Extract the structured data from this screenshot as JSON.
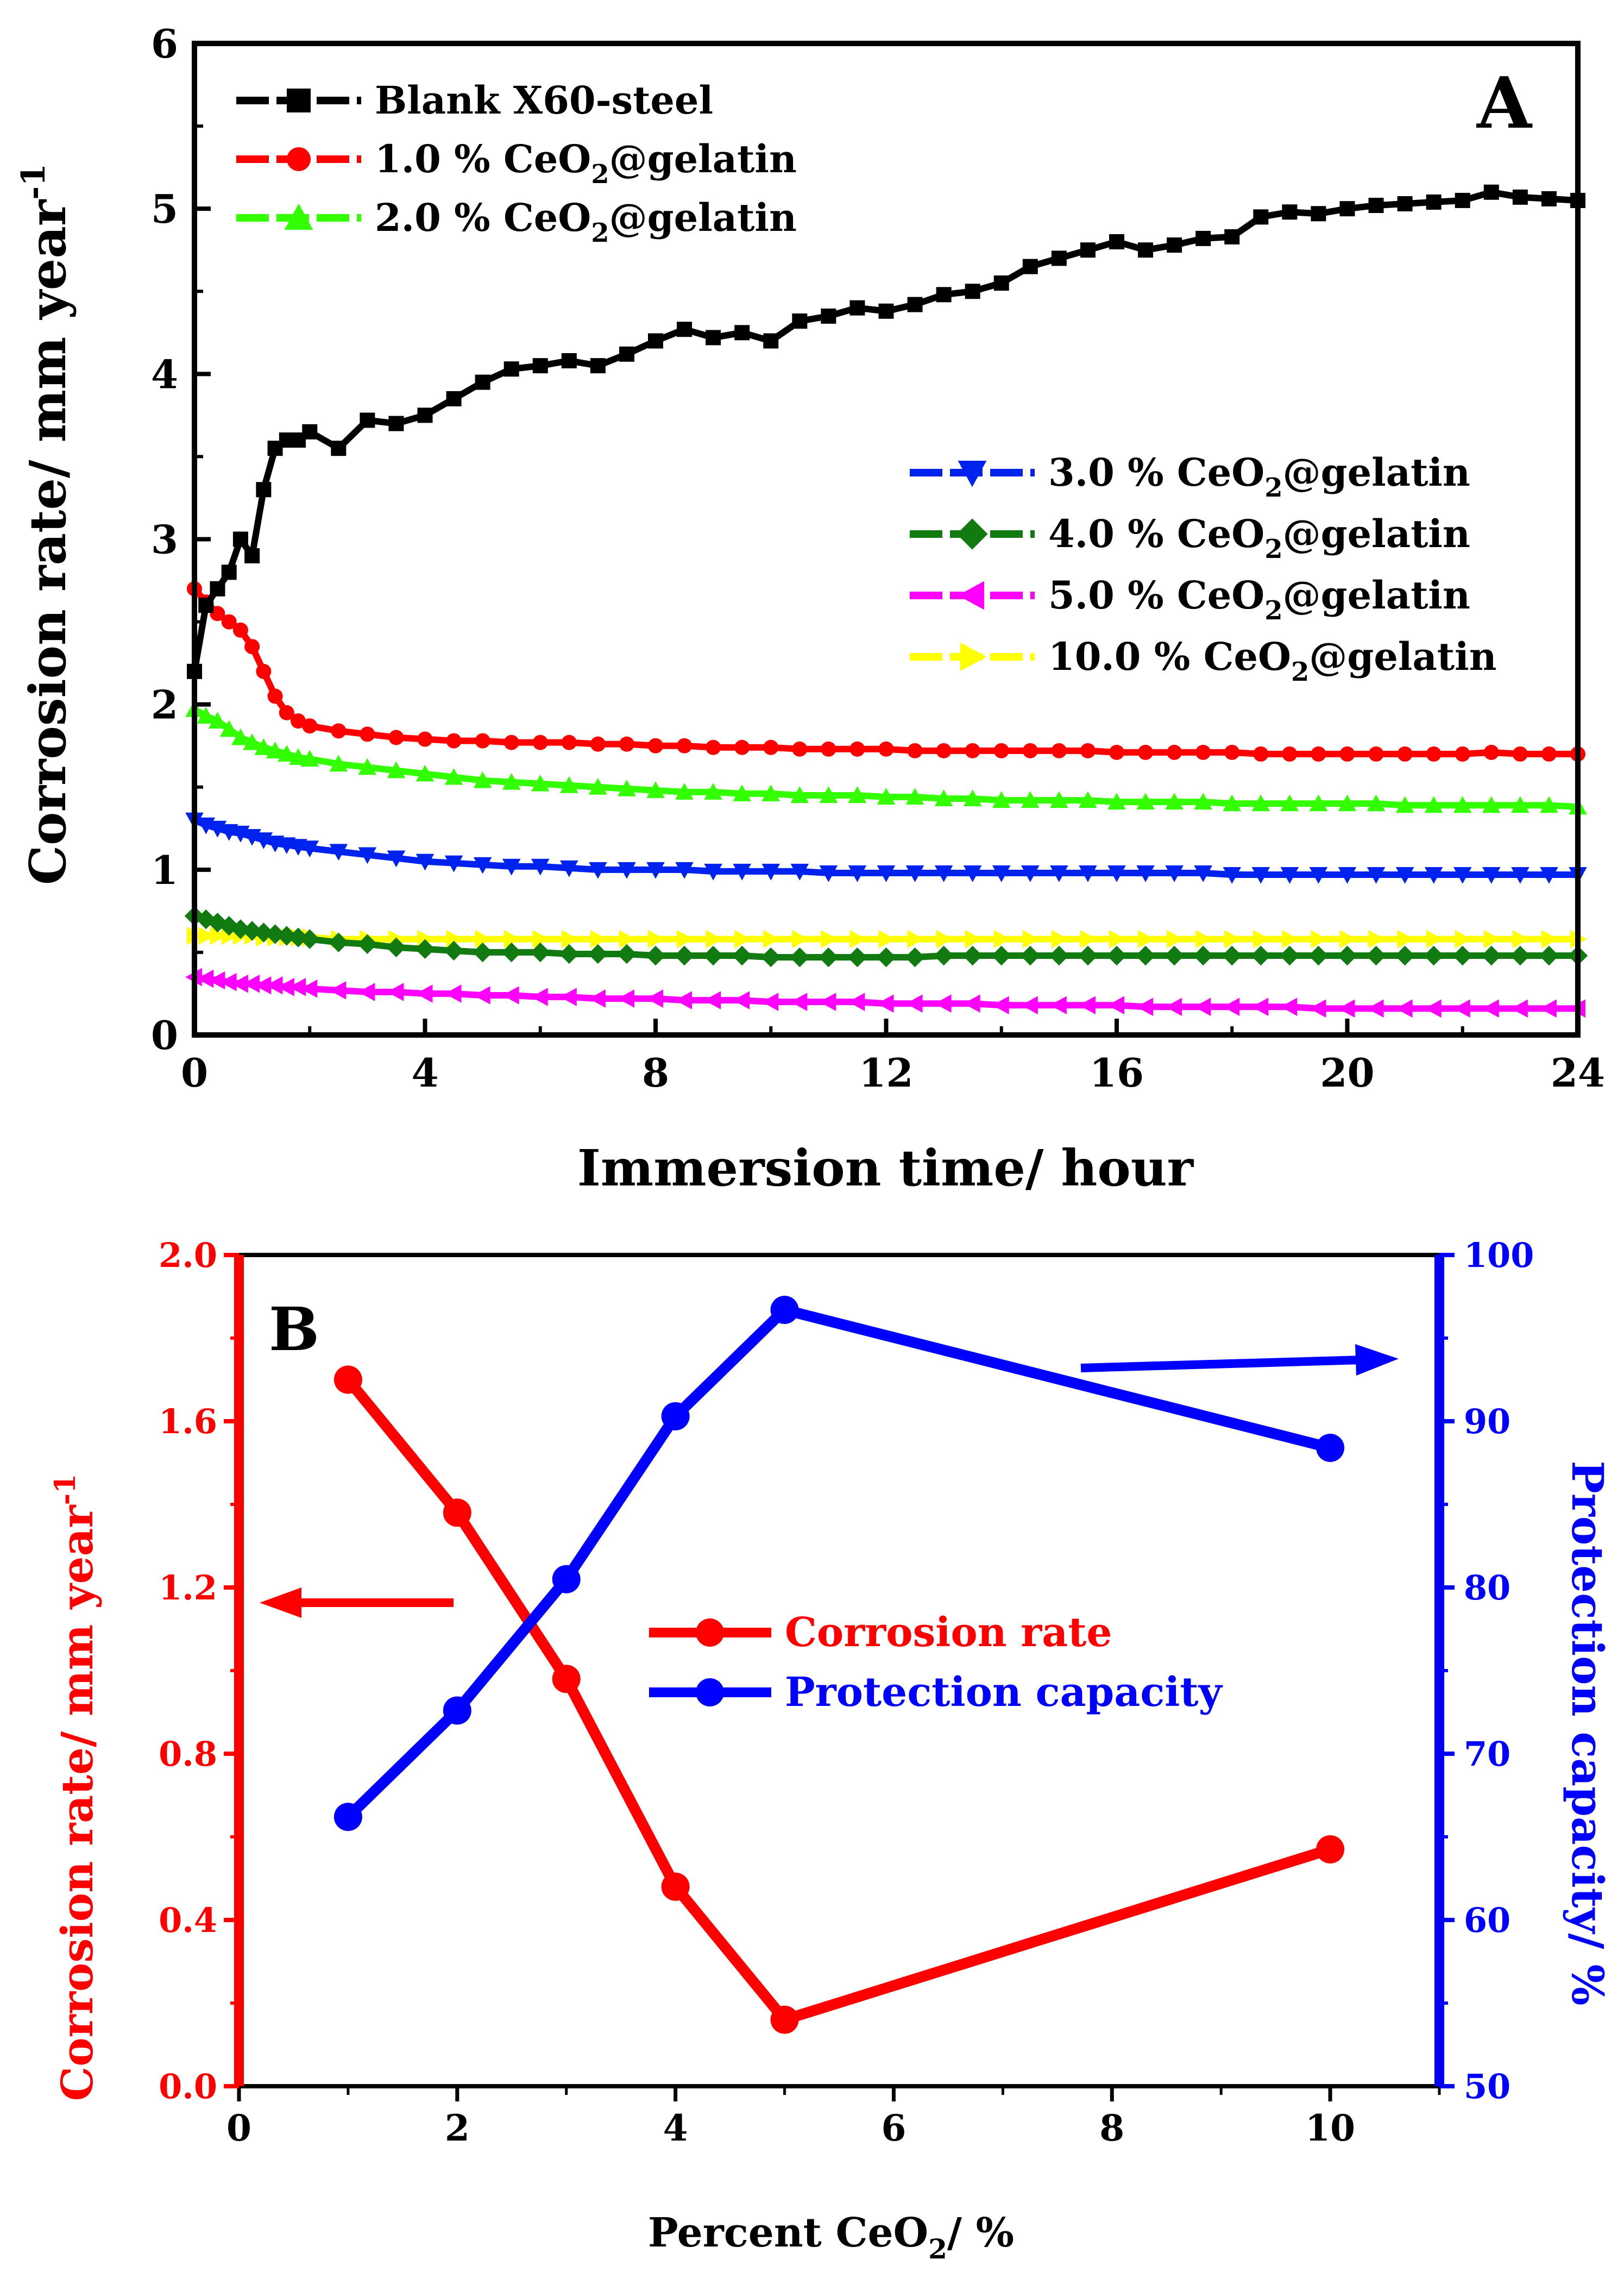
{
  "chart_data": [
    {
      "type": "line",
      "panel_label": "A",
      "title": "",
      "xlabel": "Immersion time/ hour",
      "ylabel_main": "Corrosion rate/ mm year",
      "ylabel_sup": "-1",
      "xlim": [
        0,
        24
      ],
      "ylim": [
        0,
        6
      ],
      "x_ticks": [
        "0",
        "4",
        "8",
        "12",
        "16",
        "20",
        "24"
      ],
      "y_ticks": [
        "0",
        "1",
        "2",
        "3",
        "4",
        "5",
        "6"
      ],
      "grid": false,
      "legend_placement": "top-left and right-middle",
      "x": [
        0,
        0.2,
        0.4,
        0.6,
        0.8,
        1.0,
        1.2,
        1.4,
        1.6,
        1.8,
        2.0,
        2.5,
        3.0,
        3.5,
        4.0,
        4.5,
        5.0,
        5.5,
        6.0,
        6.5,
        7.0,
        7.5,
        8.0,
        8.5,
        9.0,
        9.5,
        10.0,
        10.5,
        11.0,
        11.5,
        12.0,
        12.5,
        13.0,
        13.5,
        14.0,
        14.5,
        15.0,
        15.5,
        16.0,
        16.5,
        17.0,
        17.5,
        18.0,
        18.5,
        19.0,
        19.5,
        20.0,
        20.5,
        21.0,
        21.5,
        22.0,
        22.5,
        23.0,
        23.5,
        24.0
      ],
      "series": [
        {
          "name": "Blank X60-steel",
          "color": "#000000",
          "marker": "square",
          "values": [
            2.2,
            2.6,
            2.7,
            2.8,
            3.0,
            2.9,
            3.3,
            3.55,
            3.6,
            3.6,
            3.65,
            3.55,
            3.72,
            3.7,
            3.75,
            3.85,
            3.95,
            4.03,
            4.05,
            4.08,
            4.05,
            4.12,
            4.2,
            4.27,
            4.22,
            4.25,
            4.2,
            4.32,
            4.35,
            4.4,
            4.38,
            4.42,
            4.48,
            4.5,
            4.55,
            4.65,
            4.7,
            4.75,
            4.8,
            4.75,
            4.78,
            4.82,
            4.83,
            4.95,
            4.98,
            4.97,
            5.0,
            5.02,
            5.03,
            5.04,
            5.05,
            5.1,
            5.07,
            5.06,
            5.05
          ]
        },
        {
          "name": "1.0 % CeO2@gelatin",
          "name_main": "1.0 % CeO",
          "name_sub": "2",
          "name_rest": "@gelatin",
          "color": "#ff0000",
          "marker": "circle",
          "values": [
            2.7,
            2.62,
            2.55,
            2.5,
            2.45,
            2.35,
            2.2,
            2.05,
            1.95,
            1.9,
            1.87,
            1.84,
            1.82,
            1.8,
            1.79,
            1.78,
            1.78,
            1.77,
            1.77,
            1.77,
            1.76,
            1.76,
            1.75,
            1.75,
            1.74,
            1.74,
            1.74,
            1.73,
            1.73,
            1.73,
            1.73,
            1.72,
            1.72,
            1.72,
            1.72,
            1.72,
            1.72,
            1.72,
            1.71,
            1.71,
            1.71,
            1.71,
            1.71,
            1.7,
            1.7,
            1.7,
            1.7,
            1.7,
            1.7,
            1.7,
            1.7,
            1.71,
            1.7,
            1.7,
            1.7
          ]
        },
        {
          "name": "2.0 % CeO2@gelatin",
          "name_main": "2.0 % CeO",
          "name_sub": "2",
          "name_rest": "@gelatin",
          "color": "#33ff00",
          "marker": "triangle-up",
          "values": [
            1.97,
            1.93,
            1.9,
            1.85,
            1.8,
            1.77,
            1.74,
            1.72,
            1.7,
            1.68,
            1.67,
            1.64,
            1.62,
            1.6,
            1.58,
            1.56,
            1.54,
            1.53,
            1.52,
            1.51,
            1.5,
            1.49,
            1.48,
            1.47,
            1.47,
            1.46,
            1.46,
            1.45,
            1.45,
            1.45,
            1.44,
            1.44,
            1.43,
            1.43,
            1.42,
            1.42,
            1.42,
            1.42,
            1.41,
            1.41,
            1.41,
            1.41,
            1.4,
            1.4,
            1.4,
            1.4,
            1.4,
            1.4,
            1.39,
            1.39,
            1.39,
            1.39,
            1.39,
            1.39,
            1.38
          ]
        },
        {
          "name": "3.0 % CeO2@gelatin",
          "name_main": "3.0 % CeO",
          "name_sub": "2",
          "name_rest": "@gelatin",
          "color": "#0022ee",
          "marker": "triangle-down",
          "values": [
            1.3,
            1.27,
            1.25,
            1.23,
            1.22,
            1.2,
            1.18,
            1.16,
            1.15,
            1.14,
            1.13,
            1.11,
            1.09,
            1.07,
            1.05,
            1.04,
            1.03,
            1.02,
            1.02,
            1.01,
            1.0,
            1.0,
            1.0,
            1.0,
            0.99,
            0.99,
            0.99,
            0.99,
            0.98,
            0.98,
            0.98,
            0.98,
            0.98,
            0.98,
            0.98,
            0.98,
            0.98,
            0.98,
            0.98,
            0.98,
            0.98,
            0.98,
            0.97,
            0.97,
            0.97,
            0.97,
            0.97,
            0.97,
            0.97,
            0.97,
            0.97,
            0.97,
            0.97,
            0.97,
            0.97
          ]
        },
        {
          "name": "4.0 % CeO2@gelatin",
          "name_main": "4.0 % CeO",
          "name_sub": "2",
          "name_rest": "@gelatin",
          "color": "#117a11",
          "marker": "diamond",
          "values": [
            0.72,
            0.7,
            0.68,
            0.66,
            0.64,
            0.63,
            0.62,
            0.61,
            0.6,
            0.59,
            0.58,
            0.56,
            0.55,
            0.53,
            0.52,
            0.51,
            0.5,
            0.5,
            0.5,
            0.49,
            0.49,
            0.49,
            0.48,
            0.48,
            0.48,
            0.48,
            0.47,
            0.47,
            0.47,
            0.47,
            0.47,
            0.47,
            0.48,
            0.48,
            0.48,
            0.48,
            0.48,
            0.48,
            0.48,
            0.48,
            0.48,
            0.48,
            0.48,
            0.48,
            0.48,
            0.48,
            0.48,
            0.48,
            0.48,
            0.48,
            0.48,
            0.48,
            0.48,
            0.48,
            0.48
          ]
        },
        {
          "name": "5.0 % CeO2@gelatin",
          "name_main": "5.0 % CeO",
          "name_sub": "2",
          "name_rest": "@gelatin",
          "color": "#ff00ff",
          "marker": "triangle-left",
          "values": [
            0.35,
            0.34,
            0.33,
            0.32,
            0.31,
            0.31,
            0.3,
            0.3,
            0.29,
            0.29,
            0.28,
            0.27,
            0.26,
            0.26,
            0.25,
            0.25,
            0.24,
            0.24,
            0.23,
            0.23,
            0.22,
            0.22,
            0.22,
            0.21,
            0.21,
            0.21,
            0.2,
            0.2,
            0.2,
            0.2,
            0.19,
            0.19,
            0.19,
            0.19,
            0.18,
            0.18,
            0.18,
            0.18,
            0.18,
            0.17,
            0.17,
            0.17,
            0.17,
            0.17,
            0.17,
            0.16,
            0.16,
            0.16,
            0.16,
            0.16,
            0.16,
            0.16,
            0.16,
            0.16,
            0.16
          ]
        },
        {
          "name": "10.0 % CeO2@gelatin",
          "name_main": "10.0 % CeO",
          "name_sub": "2",
          "name_rest": "@gelatin",
          "color": "#ffff00",
          "marker": "triangle-right",
          "values": [
            0.6,
            0.6,
            0.6,
            0.6,
            0.6,
            0.6,
            0.59,
            0.59,
            0.59,
            0.59,
            0.59,
            0.58,
            0.58,
            0.58,
            0.58,
            0.58,
            0.58,
            0.58,
            0.58,
            0.58,
            0.58,
            0.58,
            0.58,
            0.58,
            0.58,
            0.58,
            0.58,
            0.58,
            0.58,
            0.58,
            0.58,
            0.58,
            0.58,
            0.58,
            0.58,
            0.58,
            0.58,
            0.58,
            0.58,
            0.58,
            0.58,
            0.58,
            0.58,
            0.58,
            0.58,
            0.58,
            0.58,
            0.58,
            0.58,
            0.58,
            0.58,
            0.58,
            0.58,
            0.58,
            0.58
          ]
        }
      ]
    },
    {
      "type": "line",
      "panel_label": "B",
      "title": "",
      "xlabel_main": "Percent CeO",
      "xlabel_sub": "2",
      "xlabel_rest": "/ %",
      "ylabel_left_main": "Corrosion rate/ mm year",
      "ylabel_left_sup": "-1",
      "ylabel_right": "Protection capacity/ %",
      "xlim": [
        0,
        11
      ],
      "ylim_left": [
        0,
        2.0
      ],
      "ylim_right": [
        50,
        100
      ],
      "x_ticks": [
        "0",
        "2",
        "4",
        "6",
        "8",
        "10"
      ],
      "y_ticks_left": [
        "0.0",
        "0.4",
        "0.8",
        "1.2",
        "1.6",
        "2.0"
      ],
      "y_ticks_right": [
        "50",
        "60",
        "70",
        "80",
        "90",
        "100"
      ],
      "grid": false,
      "legend_placement": "center",
      "x": [
        1,
        2,
        3,
        4,
        5,
        10
      ],
      "series": [
        {
          "name": "Corrosion rate",
          "axis": "left",
          "color": "#ff0000",
          "marker": "circle",
          "values": [
            1.7,
            1.38,
            0.98,
            0.48,
            0.16,
            0.57
          ]
        },
        {
          "name": "Protection capacity",
          "axis": "right",
          "color": "#0000ff",
          "marker": "circle",
          "values": [
            66.2,
            72.6,
            80.5,
            90.3,
            96.7,
            88.4
          ]
        }
      ]
    }
  ]
}
